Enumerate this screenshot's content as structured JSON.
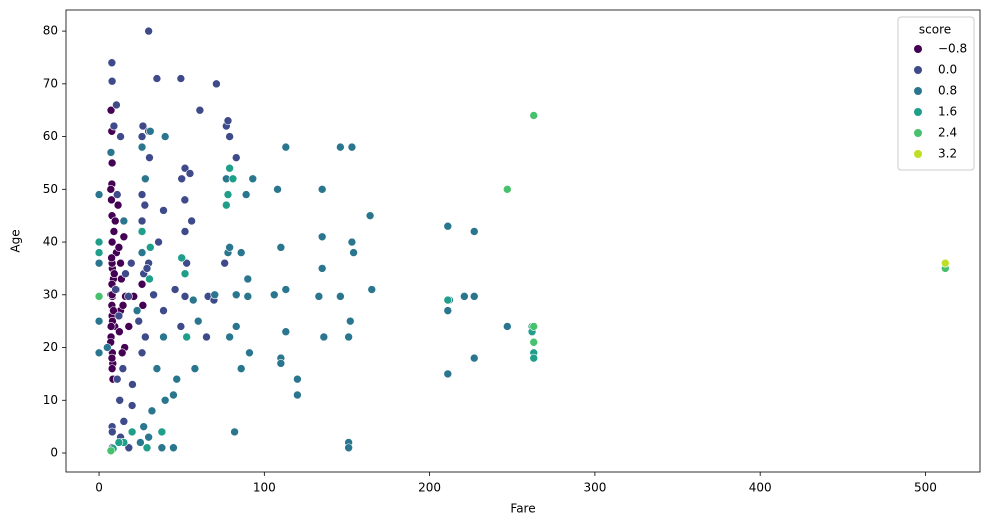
{
  "chart_data": {
    "type": "scatter",
    "x_label": "Fare",
    "y_label": "Age",
    "legend_title": "score",
    "legend": "upper right",
    "xlim": [
      -20,
      533
    ],
    "ylim": [
      -3.6,
      84
    ],
    "xticks": [
      0,
      100,
      200,
      300,
      400,
      500
    ],
    "yticks": [
      0,
      10,
      20,
      30,
      40,
      50,
      60,
      70,
      80
    ],
    "series": [
      {
        "name": "−0.8",
        "color": "#440154",
        "x": [
          7.25,
          7.9,
          8.05,
          7.75,
          7.9,
          8.05,
          7.23,
          7.85,
          8.66,
          9.5,
          10.5,
          13,
          7.05,
          7.8,
          8.3,
          9,
          7.5,
          7.88,
          8.1,
          7.9,
          7.75,
          8.05,
          8.05,
          7.9,
          9.8,
          10.5,
          12.3,
          13,
          14.5,
          15.5,
          7.7,
          7.25,
          11.5,
          7.9,
          14,
          7.6,
          8.7,
          8.05,
          13.5,
          15,
          9.2,
          12,
          7.3,
          7.9,
          7.8,
          16,
          18,
          21,
          26,
          26.5,
          8.4,
          7.1
        ],
        "values": [
          22,
          26,
          35,
          28,
          19,
          40,
          30,
          45,
          33,
          24,
          38,
          27,
          21,
          32,
          17,
          42,
          48,
          36,
          25,
          55,
          51,
          29.7,
          29.7,
          16,
          44,
          31,
          23,
          36,
          28,
          20,
          61,
          65,
          47,
          40,
          19,
          37,
          27,
          19,
          33,
          41,
          34,
          39,
          24,
          30,
          18,
          29.7,
          24,
          29.7,
          32,
          28,
          14,
          50
        ]
      },
      {
        "name": "0.0",
        "color": "#3e4a89",
        "x": [
          7.9,
          7.75,
          9,
          10.5,
          13,
          26,
          26.55,
          30,
          35,
          49.5,
          52,
          56,
          61,
          71,
          26,
          26,
          27.7,
          30.5,
          50,
          51.9,
          52,
          53,
          55,
          77,
          78,
          79,
          76,
          83,
          27,
          30,
          13,
          7.9,
          8,
          14,
          15,
          20,
          11,
          12.5,
          14.4,
          20.2,
          29,
          26,
          28,
          10,
          12,
          16,
          17.8,
          19.5,
          24,
          33,
          39,
          46,
          49.5,
          52,
          66,
          69.5,
          65,
          39,
          36,
          30,
          11,
          8,
          18
        ],
        "values": [
          70.5,
          74,
          62,
          66,
          60,
          60,
          62,
          80,
          71,
          71,
          54,
          44,
          65,
          70,
          44,
          49,
          47,
          56,
          52,
          48,
          42,
          36,
          53,
          62,
          63,
          60,
          36,
          56,
          34,
          36,
          3,
          5,
          1,
          2,
          6,
          9,
          14,
          10,
          16,
          13,
          35,
          19,
          22,
          31,
          26,
          34,
          29.7,
          36,
          25,
          30,
          27,
          31,
          24,
          29.7,
          29.7,
          29,
          22,
          46,
          40,
          61,
          49,
          4,
          1
        ]
      },
      {
        "name": "0.8",
        "color": "#2a768e",
        "x": [
          31,
          40,
          26,
          28,
          77,
          89,
          93,
          108,
          113,
          135,
          146,
          153,
          164,
          211,
          227,
          135,
          153,
          110,
          78,
          90,
          86,
          79,
          135,
          154,
          113,
          165,
          212,
          221,
          227,
          146,
          133,
          90,
          106,
          211,
          247,
          152,
          113,
          136,
          151,
          110,
          110,
          120,
          120,
          211,
          227,
          82,
          151,
          151,
          83,
          86,
          91,
          79,
          83,
          58,
          45,
          40,
          35,
          32,
          27,
          30,
          25,
          38,
          45,
          47,
          39,
          57,
          60,
          70,
          23,
          26,
          0,
          0,
          0,
          0,
          5,
          7.2,
          15
        ],
        "values": [
          61,
          60,
          58,
          52,
          52,
          49,
          52,
          50,
          58,
          50,
          58,
          58,
          45,
          43,
          42,
          41,
          40,
          39,
          38,
          33,
          38,
          39,
          35,
          38,
          31,
          31,
          29,
          29.7,
          29.7,
          29.7,
          29.7,
          29.7,
          30,
          27,
          24,
          25,
          23,
          22,
          22,
          18,
          17,
          14,
          11,
          15,
          18,
          4,
          2,
          1,
          24,
          16,
          19,
          22,
          30,
          16,
          11,
          10,
          16,
          8,
          5,
          3,
          2,
          1,
          1,
          14,
          22,
          29,
          25,
          30,
          27,
          38,
          49,
          36,
          25,
          19,
          20,
          57,
          44
        ]
      },
      {
        "name": "1.6",
        "color": "#1f9e89",
        "x": [
          0,
          0,
          26,
          30.5,
          31,
          50,
          52,
          53,
          79,
          81,
          78,
          77,
          211,
          262,
          262,
          263,
          263,
          263,
          15,
          12,
          20,
          38,
          29,
          8.5
        ],
        "values": [
          40,
          38,
          42,
          33,
          39,
          37,
          34,
          22,
          54,
          52,
          49,
          47,
          29,
          24,
          23,
          19,
          18,
          21,
          2,
          2,
          4,
          4,
          1,
          0.83
        ]
      },
      {
        "name": "2.4",
        "color": "#47c16e",
        "x": [
          0,
          7.2,
          247,
          263,
          263,
          263,
          512
        ],
        "values": [
          29.7,
          0.42,
          50,
          64,
          24,
          21,
          35
        ]
      },
      {
        "name": "3.2",
        "color": "#bddf26",
        "x": [
          512
        ],
        "values": [
          36
        ]
      }
    ]
  }
}
